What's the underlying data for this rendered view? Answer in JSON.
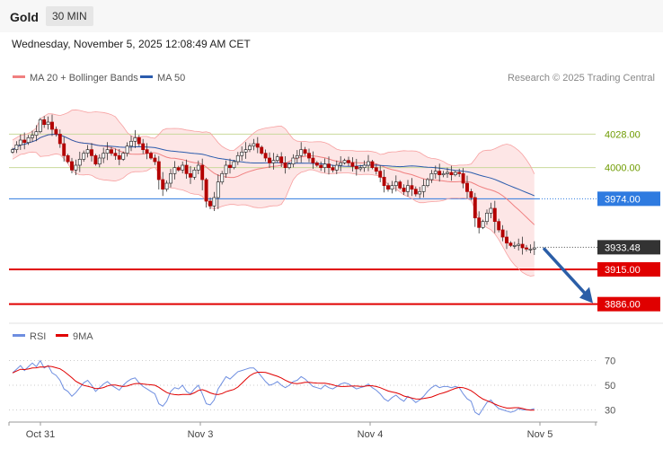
{
  "header": {
    "title": "Gold",
    "timeframe": "30 MIN"
  },
  "datetime": "Wednesday, November 5, 2025 12:08:49 AM CET",
  "legend": {
    "ma20_bb": "MA 20 + Bollinger Bands",
    "ma50": "MA 50"
  },
  "copyright": "Research © 2025 Trading Central",
  "rsi_legend": {
    "rsi": "RSI",
    "ma9": "9MA"
  },
  "colors": {
    "bollinger": "#f7a1a1",
    "bollinger_fill": "#fde3e3",
    "ma50": "#2b5cad",
    "candle": "#b30000",
    "green_level": "#6e9b00",
    "blue_level": "#2f7be0",
    "red_level": "#e00000",
    "last_price": "#333333",
    "arrow": "#2b5ea7",
    "rsi_line": "#6e8ee0",
    "rsi_ma": "#e00000"
  },
  "chart_data": [
    {
      "type": "candlestick",
      "ylim": [
        3870,
        4065
      ],
      "x_labels": [
        "Oct 31",
        "Nov 3",
        "Nov 4",
        "Nov 5"
      ],
      "levels": [
        {
          "value": 4028.0,
          "label": "4028.00",
          "kind": "green"
        },
        {
          "value": 4000.0,
          "label": "4000.00",
          "kind": "green"
        },
        {
          "value": 3974.0,
          "label": "3974.00",
          "kind": "blue"
        },
        {
          "value": 3933.48,
          "label": "3933.48",
          "kind": "last"
        },
        {
          "value": 3915.0,
          "label": "3915.00",
          "kind": "red"
        },
        {
          "value": 3886.0,
          "label": "3886.00",
          "kind": "red"
        }
      ],
      "arrow": {
        "from": 3933.48,
        "to": 3886.0
      },
      "close": [
        4015,
        4019,
        4023,
        4021,
        4025,
        4027,
        4030,
        4040,
        4036,
        4038,
        4032,
        4028,
        4020,
        4010,
        4005,
        3998,
        4002,
        4007,
        4012,
        4015,
        4010,
        4003,
        4008,
        4012,
        4015,
        4012,
        4010,
        4007,
        4012,
        4018,
        4022,
        4025,
        4020,
        4015,
        4012,
        4008,
        4005,
        3990,
        3982,
        3987,
        3995,
        4000,
        3998,
        4002,
        3995,
        3992,
        3998,
        4002,
        3990,
        3972,
        3968,
        3975,
        3988,
        3995,
        4002,
        4000,
        4005,
        4010,
        4013,
        4015,
        4018,
        4020,
        4017,
        4012,
        4008,
        4004,
        4006,
        4009,
        4004,
        4000,
        4003,
        4008,
        4010,
        4015,
        4012,
        4008,
        4004,
        4002,
        4000,
        4003,
        4000,
        3998,
        4002,
        4004,
        4006,
        4004,
        4001,
        3999,
        4000,
        4002,
        4005,
        4000,
        3997,
        3992,
        3985,
        3982,
        3985,
        3988,
        3983,
        3980,
        3985,
        3982,
        3978,
        3980,
        3985,
        3990,
        3995,
        3997,
        3994,
        3995,
        3996,
        3994,
        3996,
        3995,
        3987,
        3980,
        3975,
        3958,
        3950,
        3955,
        3962,
        3966,
        3955,
        3948,
        3942,
        3937,
        3935,
        3935,
        3936,
        3933,
        3932,
        3932,
        3933
      ]
    },
    {
      "type": "line",
      "name": "RSI",
      "ylim": [
        23,
        77
      ],
      "y_ticks": [
        70,
        50,
        30
      ],
      "values": [
        60,
        63,
        66,
        62,
        65,
        68,
        65,
        70,
        64,
        66,
        60,
        58,
        54,
        47,
        45,
        41,
        44,
        48,
        52,
        54,
        50,
        45,
        48,
        51,
        53,
        50,
        48,
        46,
        50,
        53,
        55,
        56,
        52,
        49,
        47,
        45,
        43,
        35,
        33,
        37,
        45,
        48,
        47,
        50,
        45,
        43,
        47,
        50,
        43,
        35,
        34,
        38,
        47,
        52,
        57,
        55,
        58,
        61,
        62,
        63,
        64,
        64,
        61,
        57,
        53,
        50,
        51,
        53,
        50,
        48,
        50,
        53,
        54,
        57,
        55,
        52,
        49,
        48,
        47,
        50,
        48,
        47,
        49,
        51,
        52,
        51,
        49,
        47,
        48,
        49,
        51,
        48,
        46,
        43,
        39,
        37,
        40,
        42,
        39,
        37,
        41,
        39,
        36,
        38,
        41,
        45,
        48,
        50,
        48,
        49,
        49,
        48,
        49,
        48,
        43,
        39,
        37,
        28,
        26,
        31,
        36,
        38,
        34,
        31,
        30,
        29,
        28,
        29,
        31,
        30,
        30,
        30,
        31
      ]
    }
  ]
}
